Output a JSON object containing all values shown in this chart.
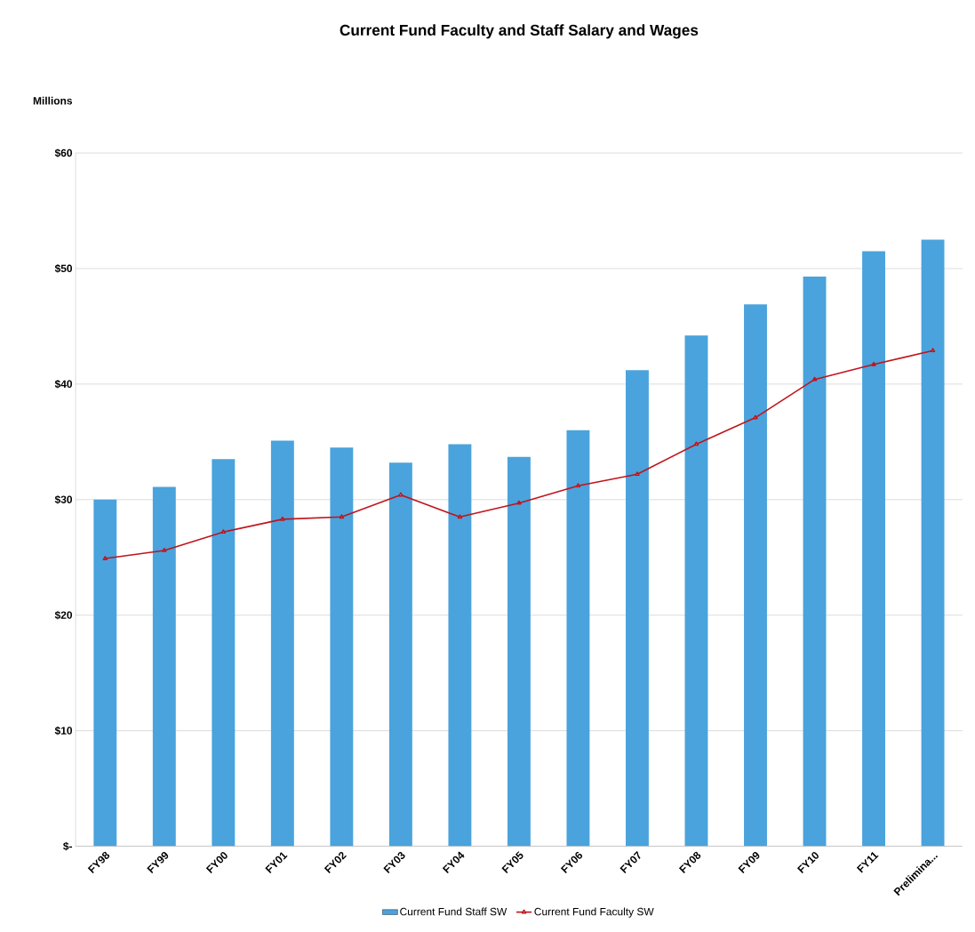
{
  "chart_data": {
    "type": "bar",
    "title": "Current Fund Faculty and Staff Salary and Wages",
    "ylabel": "Millions",
    "categories": [
      "FY98",
      "FY99",
      "FY00",
      "FY01",
      "FY02",
      "FY03",
      "FY04",
      "FY05",
      "FY06",
      "FY07",
      "FY08",
      "FY09",
      "FY10",
      "FY11",
      "Prelimina..."
    ],
    "series": [
      {
        "name": "Current Fund Staff SW",
        "color": "#4aa3dc",
        "values": [
          30.0,
          31.1,
          33.5,
          35.1,
          34.5,
          33.2,
          34.8,
          33.7,
          36.0,
          41.2,
          44.2,
          46.9,
          49.3,
          51.5,
          52.5
        ]
      },
      {
        "name": "Current Fund Faculty SW",
        "type": "line",
        "color": "#c0141c",
        "marker": "triangle",
        "values": [
          24.9,
          25.6,
          27.2,
          28.3,
          28.5,
          30.4,
          28.5,
          29.7,
          31.2,
          32.2,
          34.8,
          37.1,
          40.4,
          41.7,
          42.9
        ]
      }
    ],
    "ylim": [
      0,
      60
    ],
    "yticks": [
      {
        "value": 0,
        "label": "$-"
      },
      {
        "value": 10,
        "label": "$10"
      },
      {
        "value": 20,
        "label": "$20"
      },
      {
        "value": 30,
        "label": "$30"
      },
      {
        "value": 40,
        "label": "$40"
      },
      {
        "value": 50,
        "label": "$50"
      },
      {
        "value": 60,
        "label": "$60"
      }
    ],
    "grid": "y",
    "legend": "bottom"
  }
}
